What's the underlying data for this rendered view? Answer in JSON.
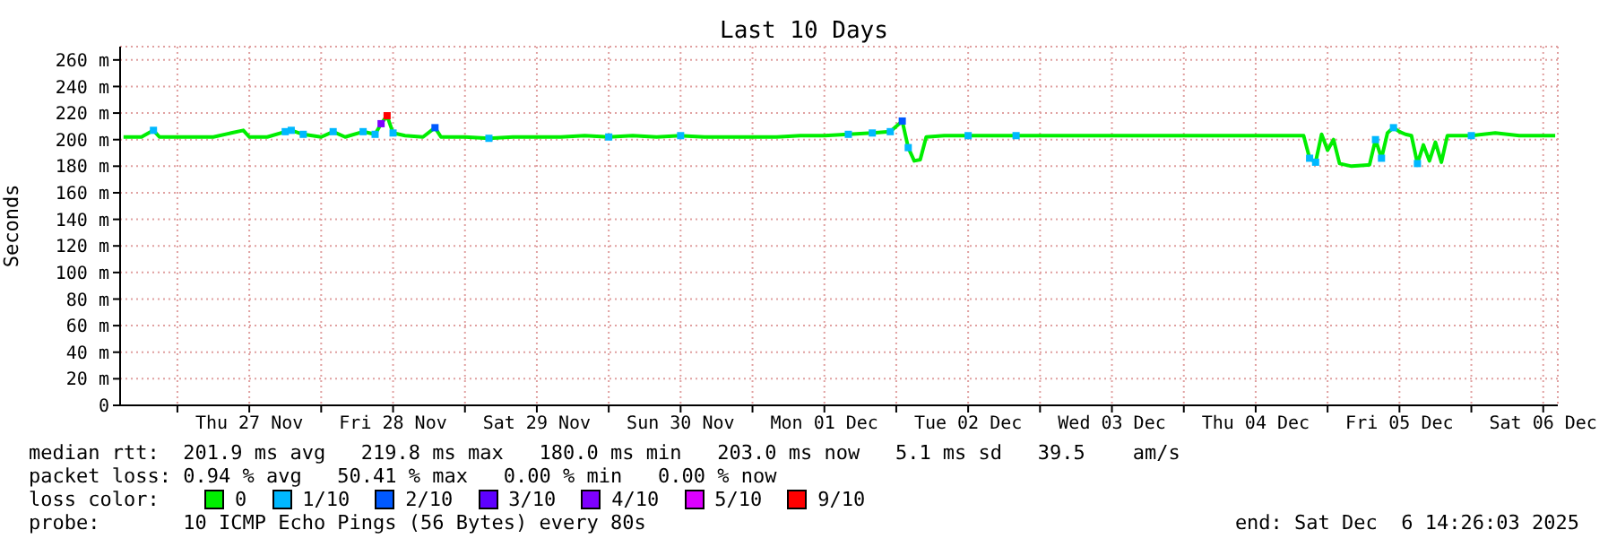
{
  "chart_data": {
    "type": "line",
    "title": "Last 10 Days",
    "ylabel": "Seconds",
    "x": [
      "2025-11-26T15:00",
      "2025-11-26T18:00",
      "2025-11-26T20:00",
      "2025-11-26T21:00",
      "2025-11-27T00:00",
      "2025-11-27T03:00",
      "2025-11-27T06:00",
      "2025-11-27T09:00",
      "2025-11-27T11:00",
      "2025-11-27T12:00",
      "2025-11-27T15:00",
      "2025-11-27T18:00",
      "2025-11-27T19:00",
      "2025-11-27T21:00",
      "2025-11-28T00:00",
      "2025-11-28T02:00",
      "2025-11-28T04:00",
      "2025-11-28T07:00",
      "2025-11-28T09:00",
      "2025-11-28T10:00",
      "2025-11-28T11:00",
      "2025-11-28T12:00",
      "2025-11-28T14:00",
      "2025-11-28T17:00",
      "2025-11-28T19:00",
      "2025-11-28T20:00",
      "2025-11-29T00:00",
      "2025-11-29T04:00",
      "2025-11-29T08:00",
      "2025-11-29T12:00",
      "2025-11-29T16:00",
      "2025-11-29T20:00",
      "2025-11-30T00:00",
      "2025-11-30T04:00",
      "2025-11-30T08:00",
      "2025-11-30T12:00",
      "2025-11-30T16:00",
      "2025-11-30T20:00",
      "2025-12-01T00:00",
      "2025-12-01T04:00",
      "2025-12-01T08:00",
      "2025-12-01T12:00",
      "2025-12-01T16:00",
      "2025-12-01T20:00",
      "2025-12-01T23:00",
      "2025-12-02T01:00",
      "2025-12-02T02:00",
      "2025-12-02T03:00",
      "2025-12-02T04:00",
      "2025-12-02T05:00",
      "2025-12-02T08:00",
      "2025-12-02T12:00",
      "2025-12-02T16:00",
      "2025-12-02T20:00",
      "2025-12-03T00:00",
      "2025-12-03T04:00",
      "2025-12-03T08:00",
      "2025-12-03T12:00",
      "2025-12-03T16:00",
      "2025-12-03T20:00",
      "2025-12-04T00:00",
      "2025-12-04T04:00",
      "2025-12-04T08:00",
      "2025-12-04T12:00",
      "2025-12-04T16:00",
      "2025-12-04T20:00",
      "2025-12-04T21:00",
      "2025-12-04T22:00",
      "2025-12-04T23:00",
      "2025-12-05T00:00",
      "2025-12-05T01:00",
      "2025-12-05T02:00",
      "2025-12-05T04:00",
      "2025-12-05T07:00",
      "2025-12-05T08:00",
      "2025-12-05T09:00",
      "2025-12-05T10:00",
      "2025-12-05T11:00",
      "2025-12-05T12:00",
      "2025-12-05T13:00",
      "2025-12-05T14:00",
      "2025-12-05T15:00",
      "2025-12-05T16:00",
      "2025-12-05T17:00",
      "2025-12-05T18:00",
      "2025-12-05T19:00",
      "2025-12-05T20:00",
      "2025-12-06T00:00",
      "2025-12-06T04:00",
      "2025-12-06T08:00",
      "2025-12-06T12:00",
      "2025-12-06T14:00"
    ],
    "series": [
      {
        "name": "0",
        "color": "#00ee00",
        "values": [
          202,
          202,
          207,
          202,
          202,
          202,
          202,
          205,
          207,
          202,
          202,
          206,
          207,
          204,
          202,
          206,
          202,
          206,
          204,
          212,
          218,
          205,
          203,
          202,
          209,
          202,
          202,
          201,
          202,
          202,
          202,
          203,
          202,
          203,
          202,
          203,
          202,
          202,
          202,
          202,
          203,
          203,
          204,
          205,
          206,
          214,
          194,
          184,
          185,
          202,
          203,
          203,
          203,
          203,
          203,
          203,
          203,
          203,
          203,
          203,
          203,
          203,
          203,
          203,
          203,
          203,
          186,
          183,
          204,
          192,
          200,
          182,
          180,
          181,
          200,
          186,
          205,
          209,
          206,
          204,
          203,
          182,
          196,
          184,
          198,
          183,
          203,
          203,
          205,
          203,
          203,
          203
        ]
      },
      {
        "name": "1/10",
        "type": "scatter",
        "marker": "square",
        "color": "#00b8ff",
        "values": [
          null,
          null,
          207,
          null,
          null,
          null,
          null,
          null,
          null,
          null,
          null,
          206,
          207,
          204,
          null,
          206,
          null,
          206,
          204,
          null,
          null,
          205,
          null,
          null,
          null,
          null,
          null,
          201,
          null,
          null,
          null,
          null,
          202,
          null,
          null,
          203,
          null,
          null,
          null,
          null,
          null,
          null,
          204,
          205,
          206,
          null,
          194,
          null,
          null,
          null,
          null,
          203,
          null,
          203,
          null,
          null,
          null,
          null,
          null,
          null,
          null,
          null,
          null,
          null,
          null,
          null,
          186,
          183,
          null,
          null,
          null,
          null,
          null,
          null,
          200,
          186,
          null,
          209,
          null,
          null,
          null,
          182,
          null,
          null,
          null,
          null,
          null,
          203,
          null,
          null,
          null,
          null
        ]
      },
      {
        "name": "2/10",
        "type": "scatter",
        "marker": "square",
        "color": "#0059ff",
        "values": [
          null,
          null,
          null,
          null,
          null,
          null,
          null,
          null,
          null,
          null,
          null,
          null,
          null,
          null,
          null,
          null,
          null,
          null,
          null,
          null,
          null,
          null,
          null,
          null,
          209,
          null,
          null,
          null,
          null,
          null,
          null,
          null,
          null,
          null,
          null,
          null,
          null,
          null,
          null,
          null,
          null,
          null,
          null,
          null,
          null,
          214,
          null,
          null,
          null,
          null,
          null,
          null,
          null,
          null,
          null,
          null,
          null,
          null,
          null,
          null,
          null,
          null,
          null,
          null,
          null,
          null,
          null,
          null,
          null,
          null,
          null,
          null,
          null,
          null,
          null,
          null,
          null,
          null,
          null,
          null,
          null,
          null,
          null,
          null,
          null,
          null,
          null,
          null,
          null,
          null,
          null,
          null
        ]
      },
      {
        "name": "3/10",
        "type": "scatter",
        "marker": "square",
        "color": "#5e00ff",
        "values": [
          null,
          null,
          null,
          null,
          null,
          null,
          null,
          null,
          null,
          null,
          null,
          null,
          null,
          null,
          null,
          null,
          null,
          null,
          null,
          null,
          null,
          null,
          null,
          null,
          null,
          null,
          null,
          null,
          null,
          null,
          null,
          null,
          null,
          null,
          null,
          null,
          null,
          null,
          null,
          null,
          null,
          null,
          null,
          null,
          null,
          null,
          null,
          null,
          null,
          null,
          null,
          null,
          null,
          null,
          null,
          null,
          null,
          null,
          null,
          null,
          null,
          null,
          null,
          null,
          null,
          null,
          null,
          null,
          null,
          null,
          null,
          null,
          null,
          null,
          null,
          null,
          null,
          null,
          null,
          null,
          null,
          null,
          null,
          null,
          null,
          null,
          null,
          null,
          null,
          null,
          null,
          null
        ]
      },
      {
        "name": "4/10",
        "type": "scatter",
        "marker": "square",
        "color": "#7e00ff",
        "values": [
          null,
          null,
          null,
          null,
          null,
          null,
          null,
          null,
          null,
          null,
          null,
          null,
          null,
          null,
          null,
          null,
          null,
          null,
          null,
          212,
          null,
          null,
          null,
          null,
          null,
          null,
          null,
          null,
          null,
          null,
          null,
          null,
          null,
          null,
          null,
          null,
          null,
          null,
          null,
          null,
          null,
          null,
          null,
          null,
          null,
          null,
          null,
          null,
          null,
          null,
          null,
          null,
          null,
          null,
          null,
          null,
          null,
          null,
          null,
          null,
          null,
          null,
          null,
          null,
          null,
          null,
          null,
          null,
          null,
          null,
          null,
          null,
          null,
          null,
          null,
          null,
          null,
          null,
          null,
          null,
          null,
          null,
          null,
          null,
          null,
          null,
          null,
          null,
          null,
          null,
          null,
          null
        ]
      },
      {
        "name": "5/10",
        "type": "scatter",
        "marker": "square",
        "color": "#dd00ff",
        "values": [
          null,
          null,
          null,
          null,
          null,
          null,
          null,
          null,
          null,
          null,
          null,
          null,
          null,
          null,
          null,
          null,
          null,
          null,
          null,
          null,
          null,
          null,
          null,
          null,
          null,
          null,
          null,
          null,
          null,
          null,
          null,
          null,
          null,
          null,
          null,
          null,
          null,
          null,
          null,
          null,
          null,
          null,
          null,
          null,
          null,
          null,
          null,
          null,
          null,
          null,
          null,
          null,
          null,
          null,
          null,
          null,
          null,
          null,
          null,
          null,
          null,
          null,
          null,
          null,
          null,
          null,
          null,
          null,
          null,
          null,
          null,
          null,
          null,
          null,
          null,
          null,
          null,
          null,
          null,
          null,
          null,
          null,
          null,
          null,
          null,
          null,
          null,
          null,
          null,
          null,
          null,
          null
        ]
      },
      {
        "name": "9/10",
        "type": "scatter",
        "marker": "square",
        "color": "#ff0000",
        "values": [
          null,
          null,
          null,
          null,
          null,
          null,
          null,
          null,
          null,
          null,
          null,
          null,
          null,
          null,
          null,
          null,
          null,
          null,
          null,
          null,
          218,
          null,
          null,
          null,
          null,
          null,
          null,
          null,
          null,
          null,
          null,
          null,
          null,
          null,
          null,
          null,
          null,
          null,
          null,
          null,
          null,
          null,
          null,
          null,
          null,
          null,
          null,
          null,
          null,
          null,
          null,
          null,
          null,
          null,
          null,
          null,
          null,
          null,
          null,
          null,
          null,
          null,
          null,
          null,
          null,
          null,
          null,
          null,
          null,
          null,
          null,
          null,
          null,
          null,
          null,
          null,
          null,
          null,
          null,
          null,
          null,
          null,
          null,
          null,
          null,
          null,
          null,
          null,
          null,
          null,
          null,
          null
        ]
      }
    ],
    "xlim": [
      "2025-11-26T14:26",
      "2025-12-06T14:26"
    ],
    "xticks": [
      {
        "value": "2025-11-27T00:00",
        "label": null
      },
      {
        "value": "2025-11-27T12:00",
        "label": "Thu 27 Nov"
      },
      {
        "value": "2025-11-28T00:00",
        "label": null
      },
      {
        "value": "2025-11-28T12:00",
        "label": "Fri 28 Nov"
      },
      {
        "value": "2025-11-29T00:00",
        "label": null
      },
      {
        "value": "2025-11-29T12:00",
        "label": "Sat 29 Nov"
      },
      {
        "value": "2025-11-30T00:00",
        "label": null
      },
      {
        "value": "2025-11-30T12:00",
        "label": "Sun 30 Nov"
      },
      {
        "value": "2025-12-01T00:00",
        "label": null
      },
      {
        "value": "2025-12-01T12:00",
        "label": "Mon 01 Dec"
      },
      {
        "value": "2025-12-02T00:00",
        "label": null
      },
      {
        "value": "2025-12-02T12:00",
        "label": "Tue 02 Dec"
      },
      {
        "value": "2025-12-03T00:00",
        "label": null
      },
      {
        "value": "2025-12-03T12:00",
        "label": "Wed 03 Dec"
      },
      {
        "value": "2025-12-04T00:00",
        "label": null
      },
      {
        "value": "2025-12-04T12:00",
        "label": "Thu 04 Dec"
      },
      {
        "value": "2025-12-05T00:00",
        "label": null
      },
      {
        "value": "2025-12-05T12:00",
        "label": "Fri 05 Dec"
      },
      {
        "value": "2025-12-06T00:00",
        "label": null
      },
      {
        "value": "2025-12-06T12:00",
        "label": "Sat 06 Dec"
      }
    ],
    "ylim": [
      0,
      270
    ],
    "yticks": [
      0,
      {
        "value": 20,
        "label": "20 m"
      },
      {
        "value": 40,
        "label": "40 m"
      },
      {
        "value": 60,
        "label": "60 m"
      },
      {
        "value": 80,
        "label": "80 m"
      },
      {
        "value": 100,
        "label": "100 m"
      },
      {
        "value": 120,
        "label": "120 m"
      },
      {
        "value": 140,
        "label": "140 m"
      },
      {
        "value": 160,
        "label": "160 m"
      },
      {
        "value": 180,
        "label": "180 m"
      },
      {
        "value": 200,
        "label": "200 m"
      },
      {
        "value": 220,
        "label": "220 m"
      },
      {
        "value": 240,
        "label": "240 m"
      },
      {
        "value": 260,
        "label": "260 m"
      }
    ],
    "grid": true,
    "legend": "bottom",
    "legend_title": "loss color:",
    "marker": "none",
    "line_style": "solid",
    "annotations": [
      "median rtt:  201.9 ms avg   219.8 ms max   180.0 ms min   203.0 ms now   5.1 ms sd   39.5    am/s",
      "packet loss: 0.94 % avg   50.41 % max   0.00 % min   0.00 % now",
      "probe:       10 ICMP Echo Pings (56 Bytes) every 80s",
      "end: Sat Dec  6 14:26:03 2025"
    ]
  }
}
